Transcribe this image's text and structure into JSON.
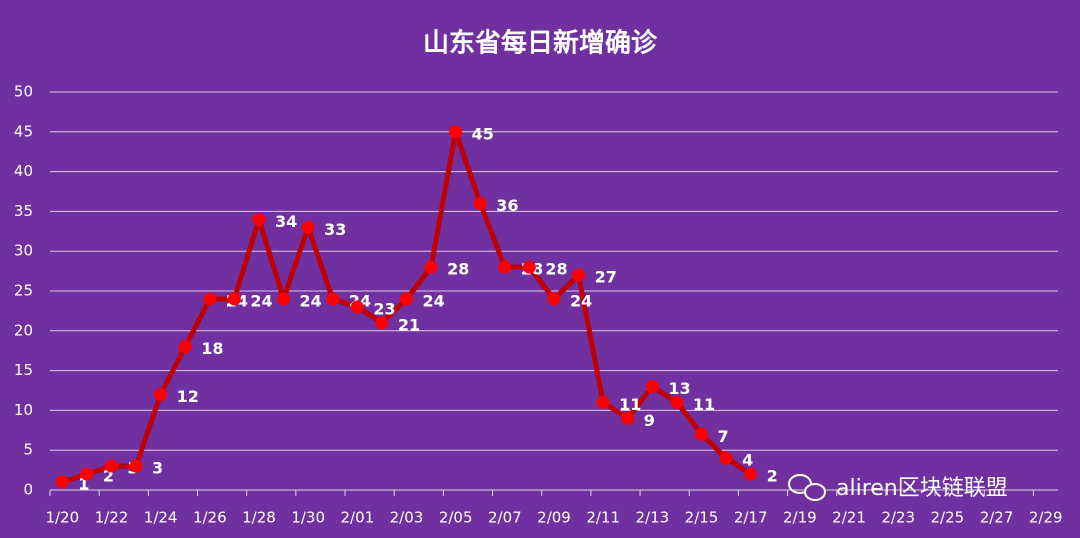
{
  "chart_data": {
    "type": "line",
    "title": "山东省每日新增确诊",
    "categories": [
      "1/20",
      null,
      "1/22",
      null,
      "1/24",
      null,
      "1/26",
      null,
      "1/28",
      null,
      "1/30",
      null,
      "2/01",
      null,
      "2/03",
      null,
      "2/05",
      null,
      "2/07",
      null,
      "2/09",
      null,
      "2/11",
      null,
      "2/13",
      null,
      "2/15",
      null,
      "2/17",
      null,
      "2/19",
      null,
      "2/21",
      null,
      "2/23",
      null,
      "2/25",
      null,
      "2/27",
      null,
      "2/29"
    ],
    "series": [
      {
        "color": "#c00000",
        "marker_color": "#ff0000",
        "values": [
          1,
          2,
          3,
          3,
          12,
          18,
          24,
          24,
          34,
          24,
          33,
          24,
          23,
          21,
          24,
          28,
          45,
          36,
          28,
          28,
          24,
          27,
          11,
          9,
          13,
          11,
          7,
          4,
          2,
          null,
          null,
          null,
          null,
          null,
          null,
          null,
          null,
          null,
          null,
          null,
          null
        ]
      }
    ],
    "ylim": [
      0,
      50
    ],
    "yticks": [
      0,
      5,
      10,
      15,
      20,
      25,
      30,
      35,
      40,
      45,
      50
    ],
    "grid": true,
    "watermark": "aliren区块链联盟"
  }
}
